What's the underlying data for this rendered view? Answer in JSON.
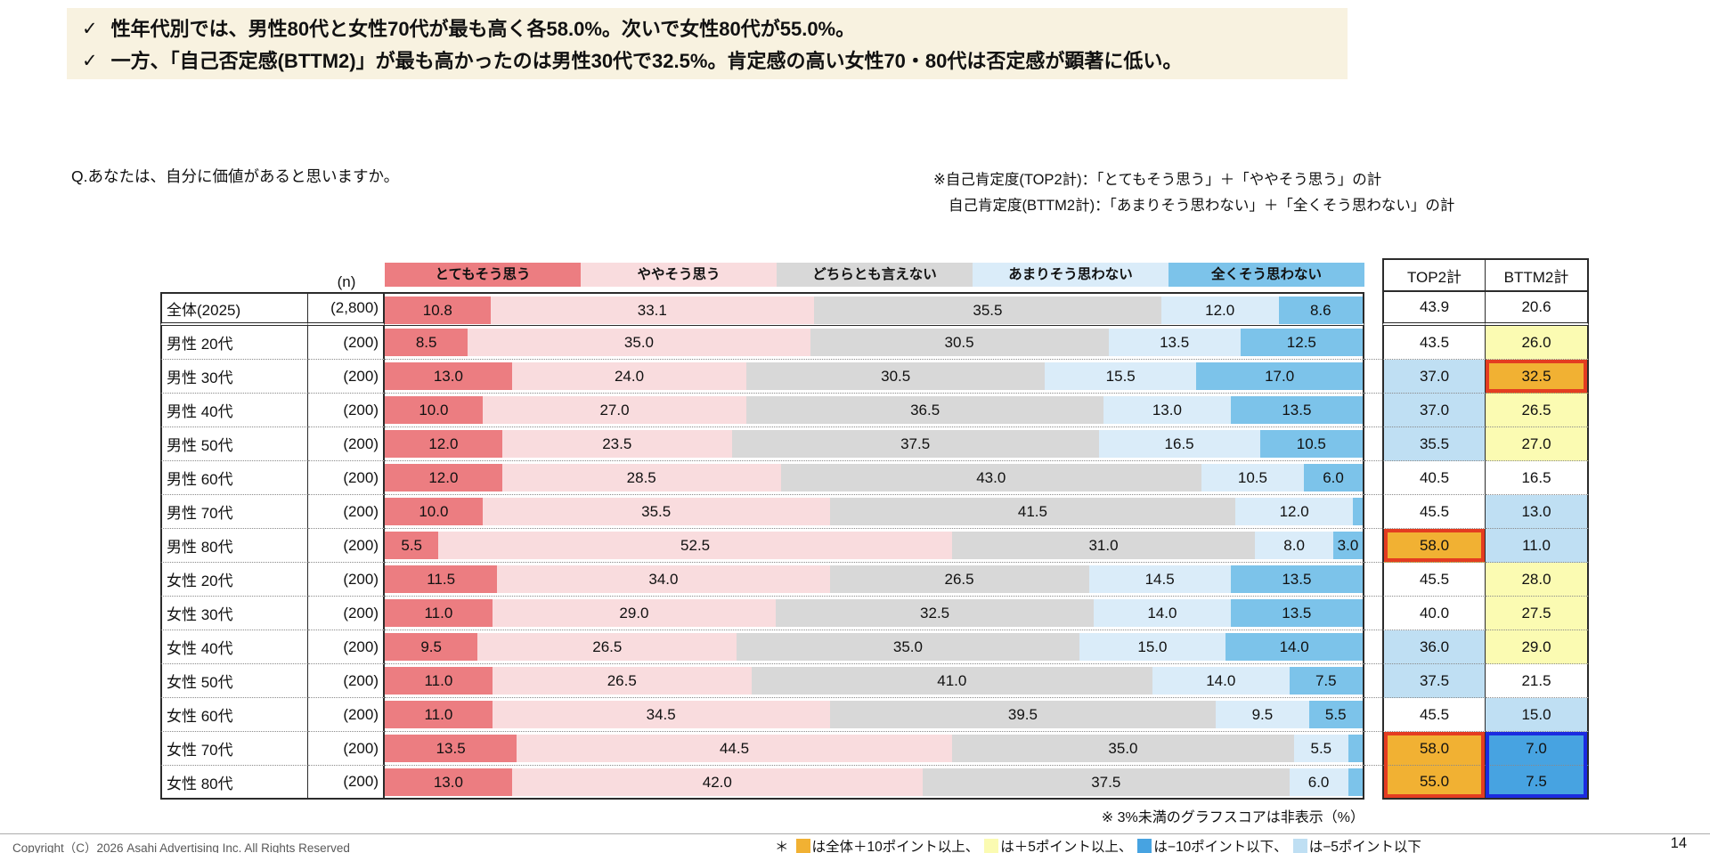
{
  "page": {
    "copyright": "Copyright（C）2026 Asahi Advertising Inc. All Rights Reserved",
    "page_number": "14"
  },
  "headline": {
    "check_mark": "✓",
    "bullets": [
      "性年代別では、男性80代と女性70代が最も高く各58.0%。次いで女性80代が55.0%。",
      "一方、「自己否定感(BTTM2)」が最も高かったのは男性30代で32.5%。肯定感の高い女性70・80代は否定感が顕著に低い。"
    ]
  },
  "question": "Q.あなたは、自分に価値があると思いますか。",
  "notes": [
    "※自己肯定度(TOP2計)：「とてもそう思う」＋「ややそう思う」の計",
    "自己肯定度(BTTM2計)：「あまりそう思わない」＋「全くそう思わない」の計"
  ],
  "palette": {
    "orange": "#F1B133",
    "yellow": "#FBFBB2",
    "ltblue": "#BFDFF3",
    "blue": "#47A3E1",
    "box_red": "#E43C21",
    "box_blue": "#1B2BE0",
    "callout_bg": "#F8F2E0"
  },
  "table": {
    "n_header": "(n)",
    "top2_header": "TOP2計",
    "bttm2_header": "BTTM2計",
    "footnote": "※ 3%未満のグラフスコアは非表示（%）",
    "label_hidden_below": 3,
    "rows": [
      {
        "label": "全体(2025)",
        "n": "(2,800)",
        "divider": true,
        "top2": {},
        "bttm2": {}
      },
      {
        "label": "男性 20代",
        "n": "(200)",
        "top2": {},
        "bttm2": {
          "bg": "yellow"
        }
      },
      {
        "label": "男性 30代",
        "n": "(200)",
        "top2": {
          "bg": "ltblue"
        },
        "bttm2": {
          "bg": "orange",
          "box": "red"
        }
      },
      {
        "label": "男性 40代",
        "n": "(200)",
        "top2": {
          "bg": "ltblue"
        },
        "bttm2": {
          "bg": "yellow"
        }
      },
      {
        "label": "男性 50代",
        "n": "(200)",
        "top2": {
          "bg": "ltblue"
        },
        "bttm2": {
          "bg": "yellow"
        }
      },
      {
        "label": "男性 60代",
        "n": "(200)",
        "top2": {},
        "bttm2": {}
      },
      {
        "label": "男性 70代",
        "n": "(200)",
        "top2": {},
        "bttm2": {
          "bg": "ltblue"
        }
      },
      {
        "label": "男性 80代",
        "n": "(200)",
        "top2": {
          "bg": "orange",
          "box": "red"
        },
        "bttm2": {
          "bg": "ltblue"
        }
      },
      {
        "label": "女性 20代",
        "n": "(200)",
        "top2": {},
        "bttm2": {
          "bg": "yellow"
        }
      },
      {
        "label": "女性 30代",
        "n": "(200)",
        "top2": {},
        "bttm2": {
          "bg": "yellow"
        }
      },
      {
        "label": "女性 40代",
        "n": "(200)",
        "top2": {
          "bg": "ltblue"
        },
        "bttm2": {
          "bg": "yellow"
        }
      },
      {
        "label": "女性 50代",
        "n": "(200)",
        "top2": {
          "bg": "ltblue"
        },
        "bttm2": {}
      },
      {
        "label": "女性 60代",
        "n": "(200)",
        "top2": {},
        "bttm2": {
          "bg": "ltblue"
        }
      },
      {
        "label": "女性 70代",
        "n": "(200)",
        "top2": {
          "bg": "orange",
          "box": "red-top"
        },
        "bttm2": {
          "bg": "blue",
          "box": "blue-top"
        }
      },
      {
        "label": "女性 80代",
        "n": "(200)",
        "top2": {
          "bg": "orange",
          "box": "red-bottom"
        },
        "bttm2": {
          "bg": "blue",
          "box": "blue-bottom"
        }
      }
    ]
  },
  "threshold_legend": {
    "prefix": "＊",
    "items": [
      {
        "color": "#F1B133",
        "text": "は全体＋10ポイント以上、"
      },
      {
        "color": "#FBFBB2",
        "text": "は＋5ポイント以上、"
      },
      {
        "color": "#47A3E1",
        "text": "は−10ポイント以下、"
      },
      {
        "color": "#BFDFF3",
        "text": "は−5ポイント以下"
      }
    ]
  },
  "chart_data": {
    "type": "bar",
    "variant": "stacked-horizontal-100pct",
    "unit": "%",
    "title": "Q.あなたは、自分に価値があると思いますか。",
    "xlim": [
      0,
      100
    ],
    "legend_position": "top",
    "grid": false,
    "note": "3%未満のグラフスコアは非表示",
    "categories": [
      "全体(2025)",
      "男性 20代",
      "男性 30代",
      "男性 40代",
      "男性 50代",
      "男性 60代",
      "男性 70代",
      "男性 80代",
      "女性 20代",
      "女性 30代",
      "女性 40代",
      "女性 50代",
      "女性 60代",
      "女性 70代",
      "女性 80代"
    ],
    "sample_sizes": [
      "(2,800)",
      "(200)",
      "(200)",
      "(200)",
      "(200)",
      "(200)",
      "(200)",
      "(200)",
      "(200)",
      "(200)",
      "(200)",
      "(200)",
      "(200)",
      "(200)",
      "(200)"
    ],
    "series": [
      {
        "name": "とてもそう思う",
        "color": "#EC7D81",
        "values": [
          10.8,
          8.5,
          13.0,
          10.0,
          12.0,
          12.0,
          10.0,
          5.5,
          11.5,
          11.0,
          9.5,
          11.0,
          11.0,
          13.5,
          13.0
        ]
      },
      {
        "name": "ややそう思う",
        "color": "#F9DCDE",
        "values": [
          33.1,
          35.0,
          24.0,
          27.0,
          23.5,
          28.5,
          35.5,
          52.5,
          34.0,
          29.0,
          26.5,
          26.5,
          34.5,
          44.5,
          42.0
        ]
      },
      {
        "name": "どちらとも言えない",
        "color": "#D8D8D8",
        "values": [
          35.5,
          30.5,
          30.5,
          36.5,
          37.5,
          43.0,
          41.5,
          31.0,
          26.5,
          32.5,
          35.0,
          41.0,
          39.5,
          35.0,
          37.5
        ]
      },
      {
        "name": "あまりそう思わない",
        "color": "#DAECF9",
        "values": [
          12.0,
          13.5,
          15.5,
          13.0,
          16.5,
          10.5,
          12.0,
          8.0,
          14.5,
          14.0,
          15.0,
          14.0,
          9.5,
          5.5,
          6.0
        ]
      },
      {
        "name": "全くそう思わない",
        "color": "#7CC3EA",
        "values": [
          8.6,
          12.5,
          17.0,
          13.5,
          10.5,
          6.0,
          1.0,
          3.0,
          13.5,
          13.5,
          14.0,
          7.5,
          5.5,
          1.5,
          1.5
        ]
      }
    ],
    "top2_total": [
      43.9,
      43.5,
      37.0,
      37.0,
      35.5,
      40.5,
      45.5,
      58.0,
      45.5,
      40.0,
      36.0,
      37.5,
      45.5,
      58.0,
      55.0
    ],
    "bttm2_total": [
      20.6,
      26.0,
      32.5,
      26.5,
      27.0,
      16.5,
      13.0,
      11.0,
      28.0,
      27.5,
      29.0,
      21.5,
      15.0,
      7.0,
      7.5
    ]
  }
}
